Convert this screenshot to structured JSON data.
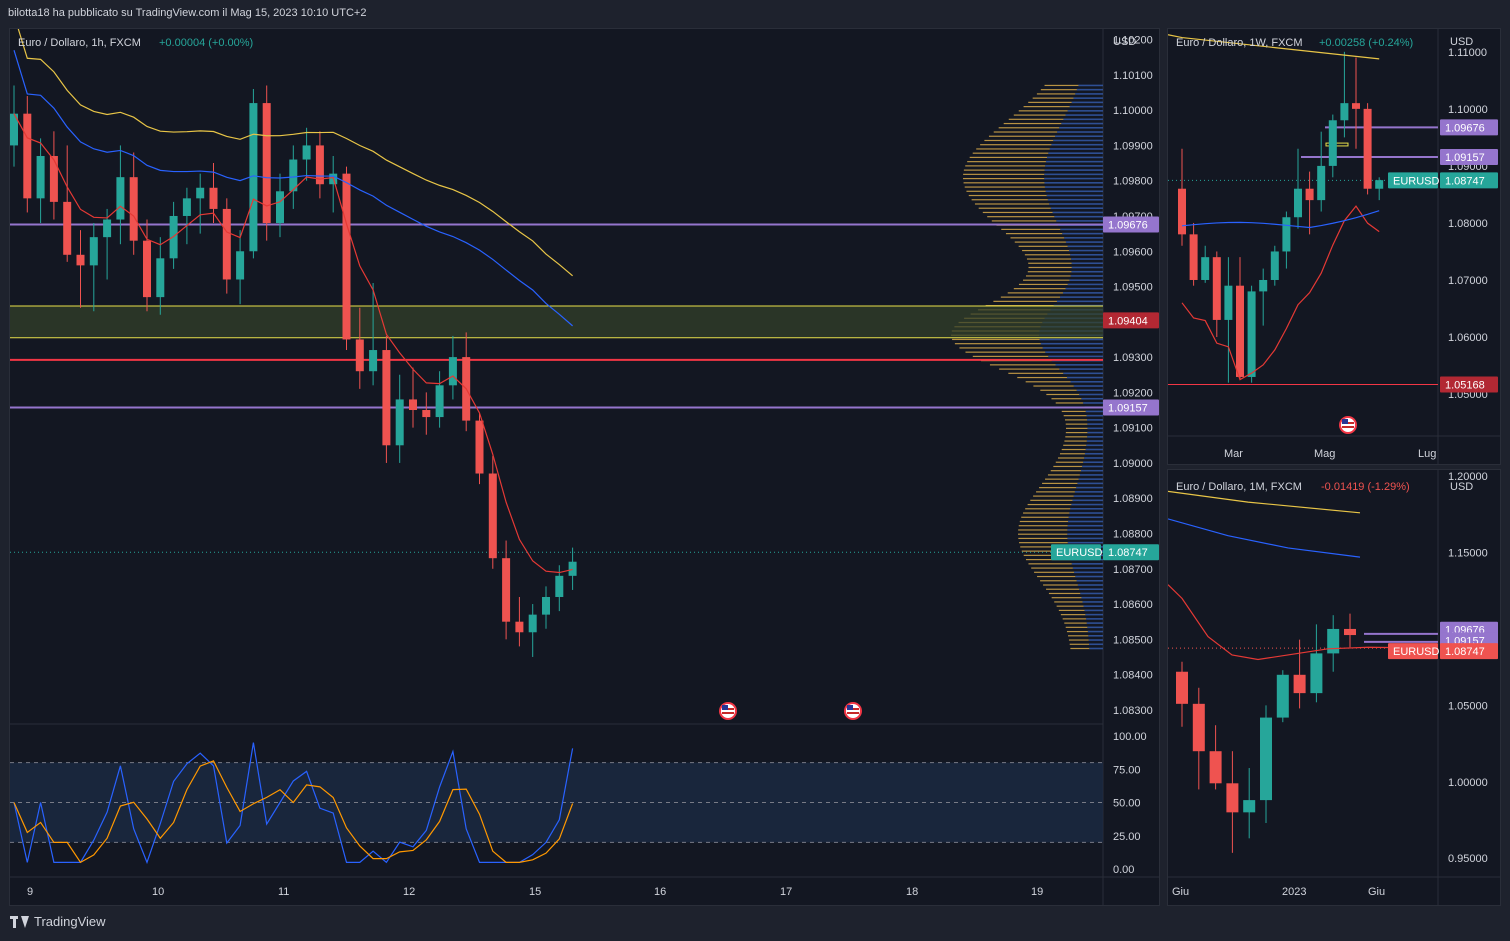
{
  "header": {
    "text": "bilotta18 ha pubblicato su TradingView.com il Mag 15, 2023 10:10 UTC+2"
  },
  "footer": {
    "logo": "TradingView",
    "logo_icon": "tradingview-logo-icon"
  },
  "colors": {
    "bg": "#131722",
    "frame": "#1e222d",
    "grid": "#2a2e39",
    "up": "#26a69a",
    "down": "#ef5350",
    "sma_yellow": "#e8c547",
    "sma_blue": "#2962ff",
    "ema_red": "#e53935",
    "purple": "#9575cd",
    "red_level": "#f23645",
    "zone": "#33402a",
    "vp_up": "#2e4f94",
    "vp_down": "#b89243",
    "stoch_k": "#2962ff",
    "stoch_d": "#ff9800"
  },
  "main": {
    "legend": {
      "symbol": "Euro / Dollaro, 1h, FXCM",
      "change": "+0.00004 (+0.00%)"
    },
    "currency": "USD",
    "price_ticks": [
      "1.10200",
      "1.10100",
      "1.10000",
      "1.09900",
      "1.09800",
      "1.09700",
      "1.09600",
      "1.09500",
      "1.09400",
      "1.09300",
      "1.09200",
      "1.09100",
      "1.09000",
      "1.08900",
      "1.08800",
      "1.08700",
      "1.08600",
      "1.08500",
      "1.08400",
      "1.08300"
    ],
    "time_labels": [
      "9",
      "10",
      "11",
      "12",
      "15",
      "16",
      "17",
      "18",
      "19"
    ],
    "price_tags": [
      {
        "label": "1.09676",
        "color": "#9575cd"
      },
      {
        "label": "1.09404",
        "color": "#b22833"
      },
      {
        "label": "1.09157",
        "color": "#9575cd"
      },
      {
        "label": "1.08747",
        "color": "#26a69a"
      }
    ],
    "symbol_tag": "EURUSD",
    "event_icon": "us-flag-icon",
    "stoch_ticks": [
      "100.00",
      "75.00",
      "50.00",
      "25.00",
      "0.00"
    ]
  },
  "weekly": {
    "legend": {
      "symbol": "Euro / Dollaro, 1W, FXCM",
      "change": "+0.00258 (+0.24%)"
    },
    "currency": "USD",
    "price_ticks": [
      "1.11000",
      "1.10000",
      "1.09000",
      "1.08000",
      "1.07000",
      "1.06000",
      "1.05000"
    ],
    "price_tags": [
      {
        "label": "1.09676",
        "color": "#9575cd"
      },
      {
        "label": "1.09157",
        "color": "#9575cd"
      },
      {
        "label": "1.08747",
        "color": "#26a69a"
      },
      {
        "label": "1.05168",
        "color": "#b22833"
      }
    ],
    "symbol_tag": "EURUSD",
    "time_labels": [
      "Mar",
      "Mag",
      "Lug"
    ]
  },
  "monthly": {
    "legend": {
      "symbol": "Euro / Dollaro, 1M, FXCM",
      "change": "-0.01419 (-1.29%)"
    },
    "currency": "USD",
    "price_ticks": [
      "1.20000",
      "1.15000",
      "1.10000",
      "1.05000",
      "1.00000",
      "0.95000"
    ],
    "price_tags": [
      {
        "label": "1.09676",
        "color": "#9575cd"
      },
      {
        "label": "1.09157",
        "color": "#9575cd"
      },
      {
        "label": "1.08747",
        "color": "#ef5350"
      }
    ],
    "symbol_tag": "EURUSD",
    "time_labels": [
      "Giu",
      "2023",
      "Giu"
    ]
  },
  "chart_data": [
    {
      "type": "candlestick",
      "title": "Euro / Dollaro, 1h, FXCM",
      "ylim": [
        1.0826,
        1.1023
      ],
      "x_labels": [
        "9",
        "10",
        "11",
        "12",
        "15",
        "16",
        "17",
        "18",
        "19"
      ],
      "horizontal_levels": [
        1.09676,
        1.09404,
        1.09355,
        1.09292,
        1.09157
      ],
      "zone": [
        1.09355,
        1.09445
      ],
      "last_price": 1.08747,
      "candles": [
        [
          1.099,
          1.1007,
          1.0984,
          1.0999
        ],
        [
          1.0999,
          1.1004,
          1.0971,
          1.0975
        ],
        [
          1.0975,
          1.0992,
          1.0968,
          1.0987
        ],
        [
          1.0987,
          1.0994,
          1.0969,
          1.0974
        ],
        [
          1.0974,
          1.099,
          1.0957,
          1.0959
        ],
        [
          1.0959,
          1.0966,
          1.0944,
          1.0956
        ],
        [
          1.0956,
          1.0968,
          1.0943,
          1.0964
        ],
        [
          1.0964,
          1.0972,
          1.0952,
          1.0969
        ],
        [
          1.0969,
          1.099,
          1.0962,
          1.0981
        ],
        [
          1.0981,
          1.0988,
          1.0959,
          1.0963
        ],
        [
          1.0963,
          1.0969,
          1.0943,
          1.0947
        ],
        [
          1.0947,
          1.0964,
          1.0942,
          1.0958
        ],
        [
          1.0958,
          1.0974,
          1.0955,
          1.097
        ],
        [
          1.097,
          1.0978,
          1.0962,
          1.0975
        ],
        [
          1.0975,
          1.0982,
          1.0965,
          1.0978
        ],
        [
          1.0978,
          1.0985,
          1.0968,
          1.0972
        ],
        [
          1.0972,
          1.0975,
          1.0948,
          1.0952
        ],
        [
          1.0952,
          1.0966,
          1.0945,
          1.096
        ],
        [
          1.096,
          1.1006,
          1.0958,
          1.1002
        ],
        [
          1.1002,
          1.1007,
          1.0963,
          1.0968
        ],
        [
          1.0968,
          1.0982,
          1.0964,
          1.0977
        ],
        [
          1.0977,
          1.099,
          1.0972,
          1.0986
        ],
        [
          1.0986,
          1.0995,
          1.098,
          1.099
        ],
        [
          1.099,
          1.0994,
          1.0975,
          1.0979
        ],
        [
          1.0979,
          1.0987,
          1.0971,
          1.0982
        ],
        [
          1.0982,
          1.0984,
          1.0932,
          1.0935
        ],
        [
          1.0935,
          1.0944,
          1.0921,
          1.0926
        ],
        [
          1.0926,
          1.0951,
          1.0922,
          1.0932
        ],
        [
          1.0932,
          1.0936,
          1.09,
          1.0905
        ],
        [
          1.0905,
          1.0925,
          1.09,
          1.0918
        ],
        [
          1.0918,
          1.0927,
          1.091,
          1.0915
        ],
        [
          1.0915,
          1.092,
          1.0908,
          1.0913
        ],
        [
          1.0913,
          1.0926,
          1.091,
          1.0922
        ],
        [
          1.0922,
          1.0936,
          1.0918,
          1.093
        ],
        [
          1.093,
          1.0937,
          1.0909,
          1.0912
        ],
        [
          1.0912,
          1.0914,
          1.0894,
          1.0897
        ],
        [
          1.0897,
          1.0902,
          1.087,
          1.0873
        ],
        [
          1.0873,
          1.0878,
          1.085,
          1.0855
        ],
        [
          1.0855,
          1.0862,
          1.0848,
          1.0852
        ],
        [
          1.0852,
          1.086,
          1.0845,
          1.0857
        ],
        [
          1.0857,
          1.0865,
          1.0853,
          1.0862
        ],
        [
          1.0862,
          1.0871,
          1.0858,
          1.0868
        ],
        [
          1.0868,
          1.0876,
          1.0864,
          1.0872
        ]
      ]
    },
    {
      "type": "candlestick",
      "title": "Euro / Dollaro, 1W, FXCM",
      "ylim": [
        1.043,
        1.114
      ],
      "x_labels": [
        "Mar",
        "Mag",
        "Lug"
      ],
      "horizontal_levels": [
        1.09676,
        1.09157,
        1.05168
      ],
      "last_price": 1.08747,
      "candles": [
        [
          1.086,
          1.093,
          1.076,
          1.078
        ],
        [
          1.078,
          1.08,
          1.069,
          1.07
        ],
        [
          1.07,
          1.076,
          1.0695,
          1.074
        ],
        [
          1.074,
          1.075,
          1.06,
          1.063
        ],
        [
          1.063,
          1.074,
          1.052,
          1.069
        ],
        [
          1.069,
          1.074,
          1.0525,
          1.053
        ],
        [
          1.053,
          1.069,
          1.052,
          1.068
        ],
        [
          1.068,
          1.072,
          1.062,
          1.07
        ],
        [
          1.07,
          1.076,
          1.069,
          1.075
        ],
        [
          1.075,
          1.082,
          1.072,
          1.081
        ],
        [
          1.081,
          1.093,
          1.079,
          1.086
        ],
        [
          1.086,
          1.089,
          1.078,
          1.084
        ],
        [
          1.084,
          1.096,
          1.082,
          1.09
        ],
        [
          1.09,
          1.099,
          1.088,
          1.098
        ],
        [
          1.098,
          1.11,
          1.095,
          1.101
        ],
        [
          1.101,
          1.109,
          1.093,
          1.1
        ],
        [
          1.1,
          1.101,
          1.085,
          1.086
        ],
        [
          1.086,
          1.088,
          1.084,
          1.0875
        ]
      ]
    },
    {
      "type": "candlestick",
      "title": "Euro / Dollaro, 1M, FXCM",
      "ylim": [
        0.939,
        1.204
      ],
      "x_labels": [
        "Giu",
        "2023",
        "Giu"
      ],
      "horizontal_levels": [
        1.09676,
        1.09157
      ],
      "last_price": 1.08747,
      "candles": [
        [
          1.072,
          1.0785,
          1.036,
          1.051
        ],
        [
          1.051,
          1.0615,
          0.995,
          1.02
        ],
        [
          1.02,
          1.037,
          0.995,
          0.999
        ],
        [
          0.999,
          1.02,
          0.9535,
          0.98
        ],
        [
          0.98,
          1.009,
          0.963,
          0.988
        ],
        [
          0.988,
          1.05,
          0.973,
          1.042
        ],
        [
          1.042,
          1.073,
          1.039,
          1.07
        ],
        [
          1.07,
          1.093,
          1.048,
          1.058
        ],
        [
          1.058,
          1.103,
          1.052,
          1.084
        ],
        [
          1.084,
          1.109,
          1.072,
          1.1
        ],
        [
          1.1,
          1.11,
          1.088,
          1.096
        ]
      ]
    }
  ]
}
